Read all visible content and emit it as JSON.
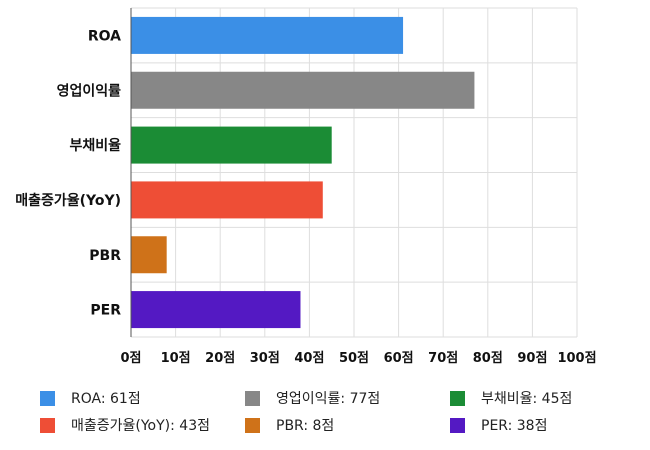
{
  "chart_data": {
    "type": "bar",
    "orientation": "horizontal",
    "categories": [
      "ROA",
      "영업이익률",
      "부채비율",
      "매출증가율(YoY)",
      "PBR",
      "PER"
    ],
    "values": [
      61,
      77,
      45,
      43,
      8,
      38
    ],
    "colors": [
      "#3b8fe6",
      "#878787",
      "#1b8c35",
      "#ee4e36",
      "#cf7219",
      "#5419c3"
    ],
    "xlim": [
      0,
      100
    ],
    "x_ticks": [
      "0점",
      "10점",
      "20점",
      "30점",
      "40점",
      "50점",
      "60점",
      "70점",
      "80점",
      "90점",
      "100점"
    ],
    "grid": true,
    "legend": {
      "position": "bottom",
      "entries": [
        "ROA: 61점",
        "영업이익률: 77점",
        "부채비율: 45점",
        "매출증가율(YoY): 43점",
        "PBR: 8점",
        "PER: 38점"
      ]
    }
  }
}
